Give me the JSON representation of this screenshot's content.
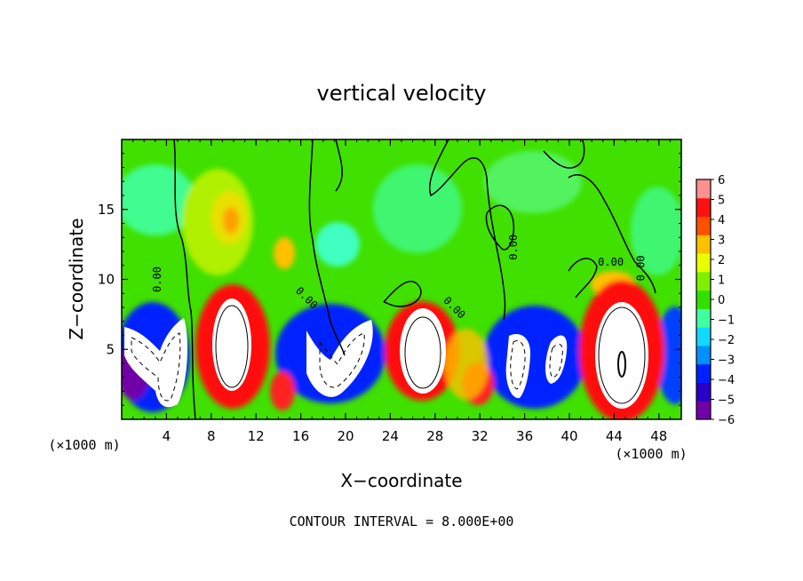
{
  "chart_data": {
    "type": "heatmap",
    "title": "vertical velocity",
    "xlabel": "X−coordinate",
    "ylabel": "Z−coordinate",
    "x_unit_left": "(×1000 m)",
    "x_unit_right": "(×1000 m)",
    "footer": "CONTOUR INTERVAL = 8.000E+00",
    "xlim": [
      0,
      50
    ],
    "ylim": [
      0,
      20
    ],
    "x_ticks": [
      4,
      8,
      12,
      16,
      20,
      24,
      28,
      32,
      36,
      40,
      44,
      48
    ],
    "x_tick_labels": [
      "4",
      "8",
      "12",
      "16",
      "20",
      "24",
      "28",
      "32",
      "36",
      "40",
      "44",
      "48"
    ],
    "y_ticks": [
      5,
      10,
      15
    ],
    "y_tick_labels": [
      "5",
      "10",
      "15"
    ],
    "colorbar": {
      "vmin": -6,
      "vmax": 6,
      "labels": [
        "6",
        "5",
        "4",
        "3",
        "2",
        "1",
        "0",
        "−1",
        "−2",
        "−3",
        "−4",
        "−5",
        "−6"
      ],
      "colors": [
        "#7000a8",
        "#2a00c8",
        "#0020ff",
        "#0090ff",
        "#10d8ff",
        "#40ffa0",
        "#30e000",
        "#7cf000",
        "#e8ff00",
        "#ffc000",
        "#ff5000",
        "#ff1010",
        "#ff9090"
      ]
    },
    "contour_labels": [
      {
        "text": "0.00",
        "x": 3.5,
        "z": 10.0,
        "rot": -90
      },
      {
        "text": "0.00",
        "x": 16.3,
        "z": 8.5,
        "rot": 45
      },
      {
        "text": "0.00",
        "x": 29.5,
        "z": 7.8,
        "rot": 45
      },
      {
        "text": "0.00",
        "x": 35.3,
        "z": 12.3,
        "rot": -90
      },
      {
        "text": "0.00",
        "x": 43.7,
        "z": 11.0,
        "rot": 0
      },
      {
        "text": "0.00",
        "x": 46.7,
        "z": 10.8,
        "rot": -90
      }
    ]
  }
}
